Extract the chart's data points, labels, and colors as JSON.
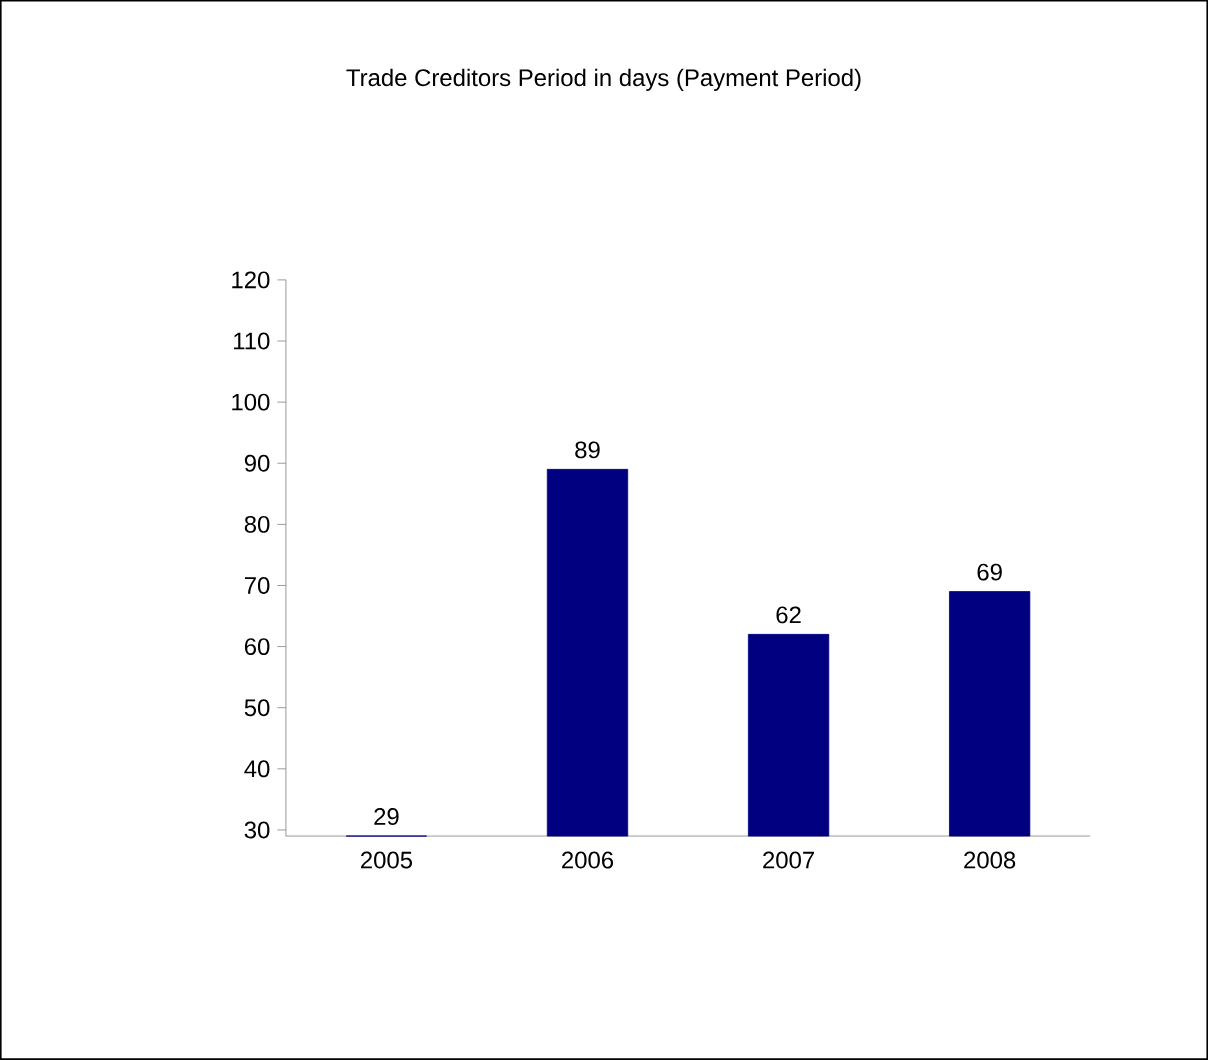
{
  "chart_data": {
    "type": "bar",
    "title": "Trade Creditors Period in days (Payment Period)",
    "categories": [
      "2005",
      "2006",
      "2007",
      "2008"
    ],
    "values": [
      29,
      89,
      62,
      69
    ],
    "color": "#000080",
    "ylim": [
      29,
      120
    ],
    "yticks": [
      30,
      40,
      50,
      60,
      70,
      80,
      90,
      100,
      110,
      120
    ],
    "data_labels": true
  }
}
